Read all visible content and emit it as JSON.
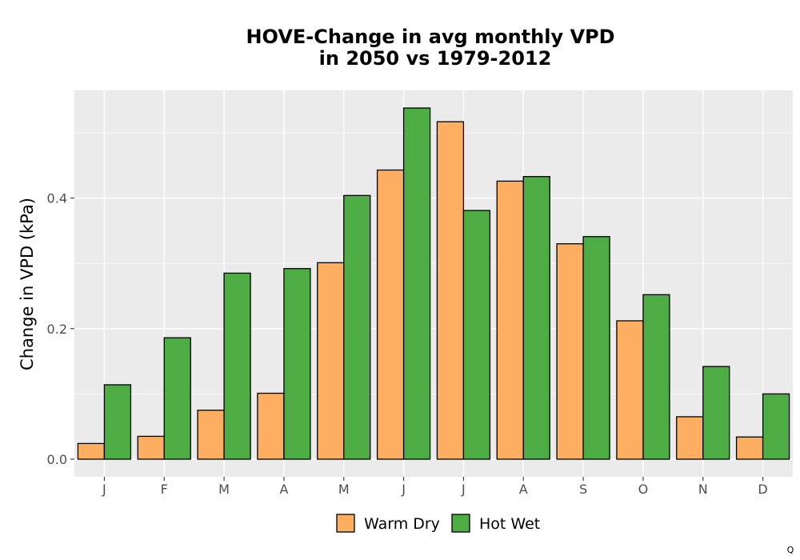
{
  "chart_data": {
    "type": "bar",
    "title_lines": [
      "HOVE-Change in avg monthly VPD",
      "in 2050 vs 1979-2012"
    ],
    "xlabel": "",
    "ylabel": "Change in VPD (kPa)",
    "categories": [
      "J",
      "F",
      "M",
      "A",
      "M",
      "J",
      "J",
      "A",
      "S",
      "O",
      "N",
      "D"
    ],
    "series": [
      {
        "name": "Warm Dry",
        "color": "#FDAE61",
        "values": [
          0.024,
          0.035,
          0.075,
          0.101,
          0.301,
          0.443,
          0.517,
          0.426,
          0.33,
          0.212,
          0.065,
          0.034
        ]
      },
      {
        "name": "Hot Wet",
        "color": "#4DAC44",
        "values": [
          0.114,
          0.186,
          0.285,
          0.292,
          0.404,
          0.538,
          0.381,
          0.433,
          0.341,
          0.252,
          0.142,
          0.1
        ]
      }
    ],
    "yticks": [
      0.0,
      0.2,
      0.4
    ],
    "ytick_labels": [
      "0.0",
      "0.2",
      "0.4"
    ],
    "ylim": [
      -0.027,
      0.565
    ],
    "grid": true,
    "panel_background": "#EBEBEB",
    "legend_position": "bottom"
  },
  "corner_mark": "Q"
}
